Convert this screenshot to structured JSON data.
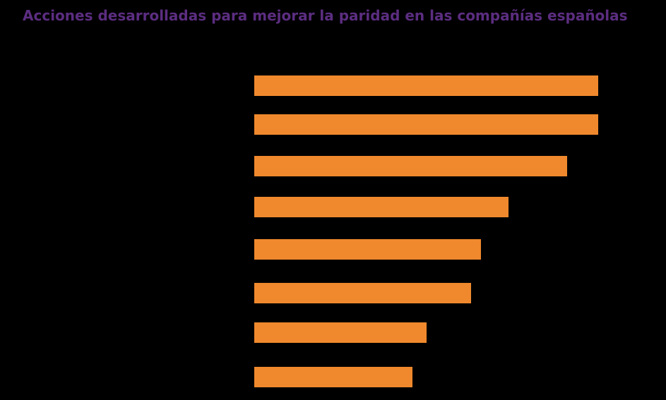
{
  "title": "Acciones desarrolladas para mejorar la paridad en las compañías españolas",
  "colors": {
    "background": "#000000",
    "title_text": "#5B2D80",
    "bar": "#F0892D"
  },
  "chart_data": {
    "type": "bar",
    "orientation": "horizontal",
    "title": "Acciones desarrolladas para mejorar la paridad en las compañías españolas",
    "xlabel": "",
    "ylabel": "",
    "grid": false,
    "legend": false,
    "categories": [
      "",
      "",
      "",
      "",
      "",
      "",
      "",
      ""
    ],
    "values": [
      100,
      100,
      91,
      74,
      66,
      63,
      50,
      46
    ],
    "value_scale": "percent of longest bar (no numeric axis or data labels visible in screenshot)",
    "xlim": [
      0,
      100
    ],
    "note": "8 orange horizontal bars, longest at top; category labels and values are not visible against the black background."
  }
}
